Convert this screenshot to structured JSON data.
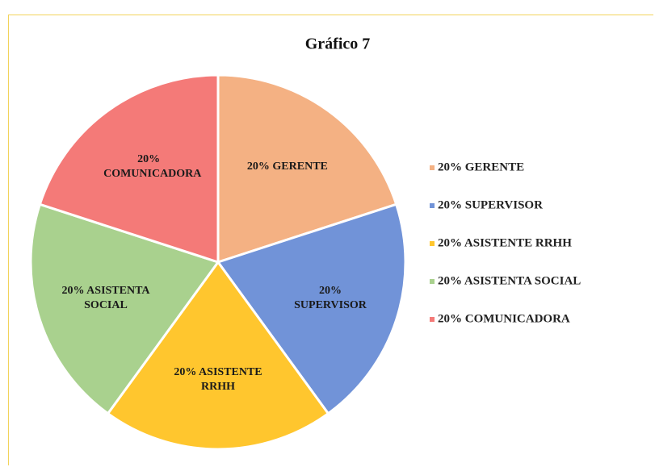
{
  "chart_data": {
    "type": "pie",
    "title": "Gráfico 7",
    "categories": [
      "20% GERENTE",
      "20% SUPERVISOR",
      "20% ASISTENTE RRHH",
      "20% ASISTENTA SOCIAL",
      "20% COMUNICADORA"
    ],
    "values": [
      20,
      20,
      20,
      20,
      20
    ],
    "colors": [
      "#f4b183",
      "#7193d8",
      "#ffc62e",
      "#a9d18e",
      "#f47a78"
    ],
    "legend": "right"
  }
}
